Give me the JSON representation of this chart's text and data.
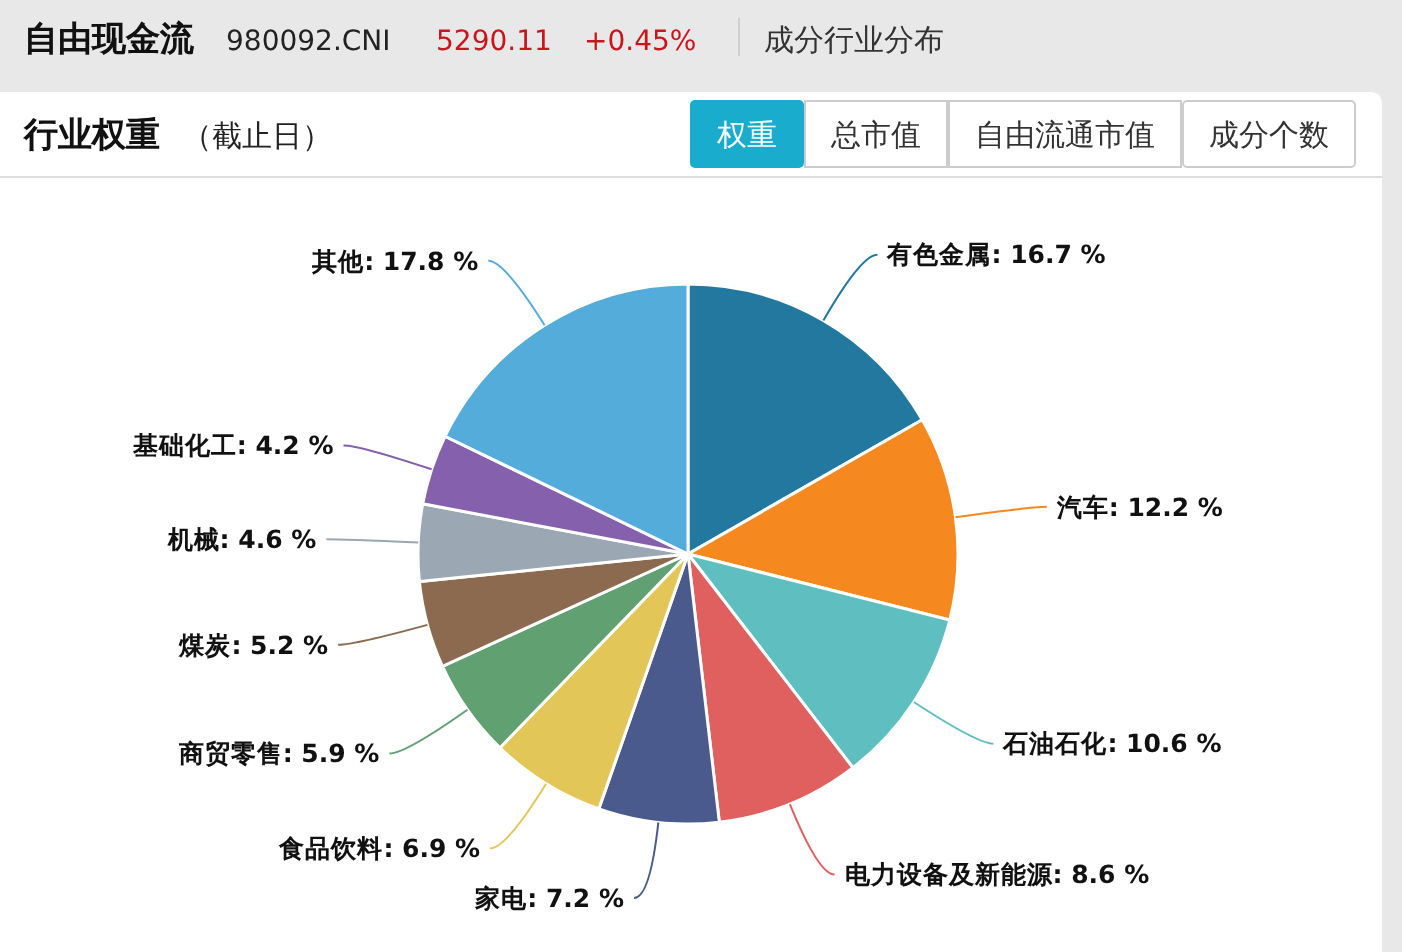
{
  "chart_data": {
    "type": "pie",
    "title": "行业权重",
    "subtitle": "（截止日）",
    "annotations": [
      "自由现金流",
      "980092.CNI",
      "5290.11",
      "+0.45%",
      "成分行业分布",
      "权重",
      "总市值",
      "自由流通市值",
      "成分个数"
    ],
    "categories": [
      "有色金属",
      "汽车",
      "石油石化",
      "电力设备及新能源",
      "家电",
      "食品饮料",
      "商贸零售",
      "煤炭",
      "机械",
      "基础化工",
      "其他"
    ],
    "values": [
      16.7,
      12.2,
      10.6,
      8.6,
      7.2,
      6.9,
      5.9,
      5.2,
      4.6,
      4.2,
      17.8
    ],
    "value_labels": [
      "16.7 %",
      "12.2 %",
      "10.6 %",
      "8.6 %",
      "7.2 %",
      "6.9 %",
      "5.9 %",
      "5.2 %",
      "4.6 %",
      "4.2 %",
      "17.8 %"
    ],
    "colors": [
      "#2378a0",
      "#f5891f",
      "#5fbfc0",
      "#e05f5f",
      "#4a5a8c",
      "#e3c658",
      "#61a070",
      "#8c6a50",
      "#9ba8b4",
      "#8560ac",
      "#54acdb"
    ]
  }
}
